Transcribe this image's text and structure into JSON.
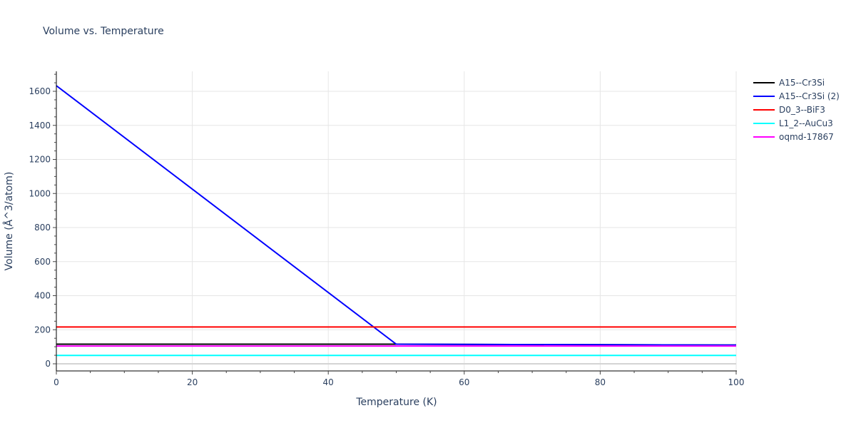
{
  "title": "Volume vs. Temperature",
  "chart_data": {
    "type": "line",
    "title": "Volume vs. Temperature",
    "xlabel": "Temperature (K)",
    "ylabel": "Volume (Å^3/atom)",
    "xlim": [
      0,
      100
    ],
    "ylim": [
      -30,
      1720
    ],
    "x_ticks": [
      0,
      20,
      40,
      60,
      80,
      100
    ],
    "y_ticks": [
      0,
      200,
      400,
      600,
      800,
      1000,
      1200,
      1400,
      1600
    ],
    "grid": true,
    "legend_position": "right",
    "series": [
      {
        "name": "A15--Cr3Si",
        "color": "#000000",
        "x": [
          0,
          50,
          100
        ],
        "y": [
          115,
          115,
          110
        ]
      },
      {
        "name": "A15--Cr3Si (2)",
        "color": "#0000ff",
        "x": [
          0,
          50,
          100
        ],
        "y": [
          1633,
          115,
          110
        ]
      },
      {
        "name": "D0_3--BiF3",
        "color": "#ff0000",
        "x": [
          0,
          100
        ],
        "y": [
          216,
          216
        ]
      },
      {
        "name": "L1_2--AuCu3",
        "color": "#00ffff",
        "x": [
          0,
          100
        ],
        "y": [
          49,
          49
        ]
      },
      {
        "name": "oqmd-17867",
        "color": "#ff00ff",
        "x": [
          0,
          100
        ],
        "y": [
          104,
          104
        ]
      }
    ]
  }
}
